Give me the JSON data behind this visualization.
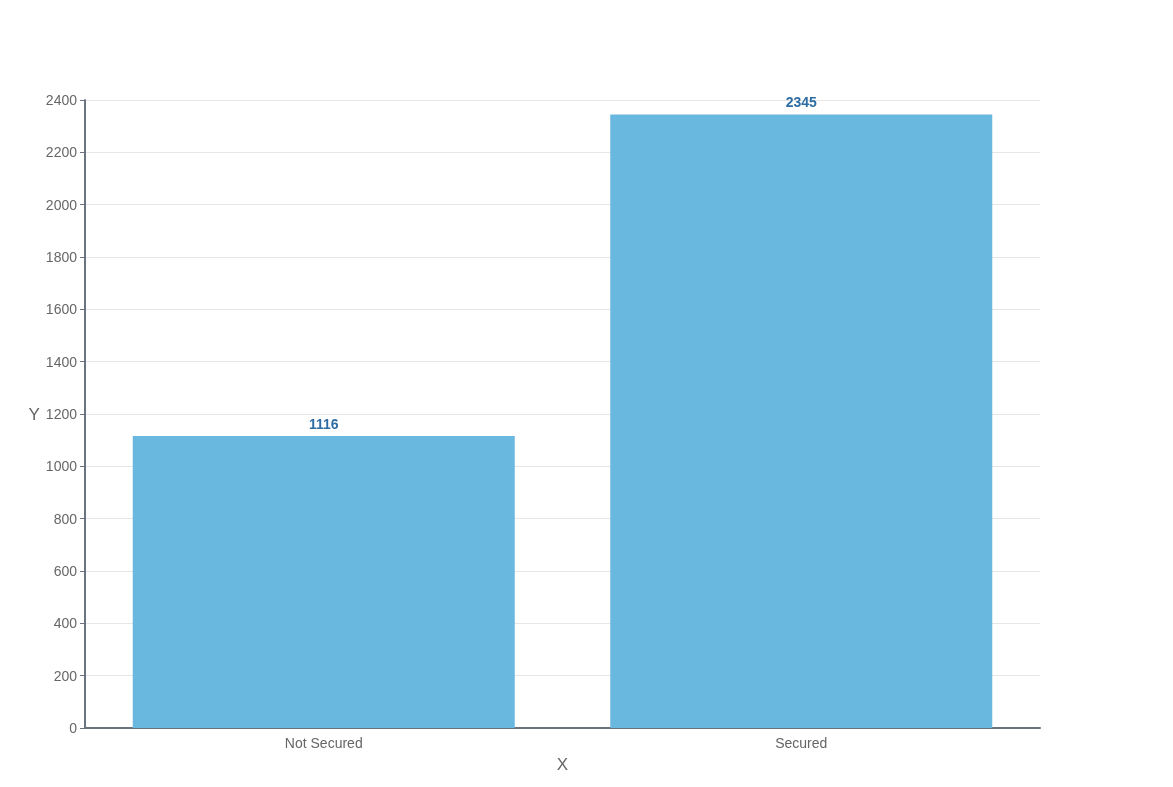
{
  "chart_data": {
    "type": "bar",
    "xlabel": "X",
    "ylabel": "Y",
    "categories": [
      "Not Secured",
      "Secured"
    ],
    "values": [
      1116,
      2345
    ],
    "color": "#68b8df",
    "ylim": [
      0,
      2400
    ],
    "yticks": [
      0,
      200,
      400,
      600,
      800,
      1000,
      1200,
      1400,
      1600,
      1800,
      2000,
      2200,
      2400
    ],
    "grid": "y",
    "data_labels": true
  }
}
